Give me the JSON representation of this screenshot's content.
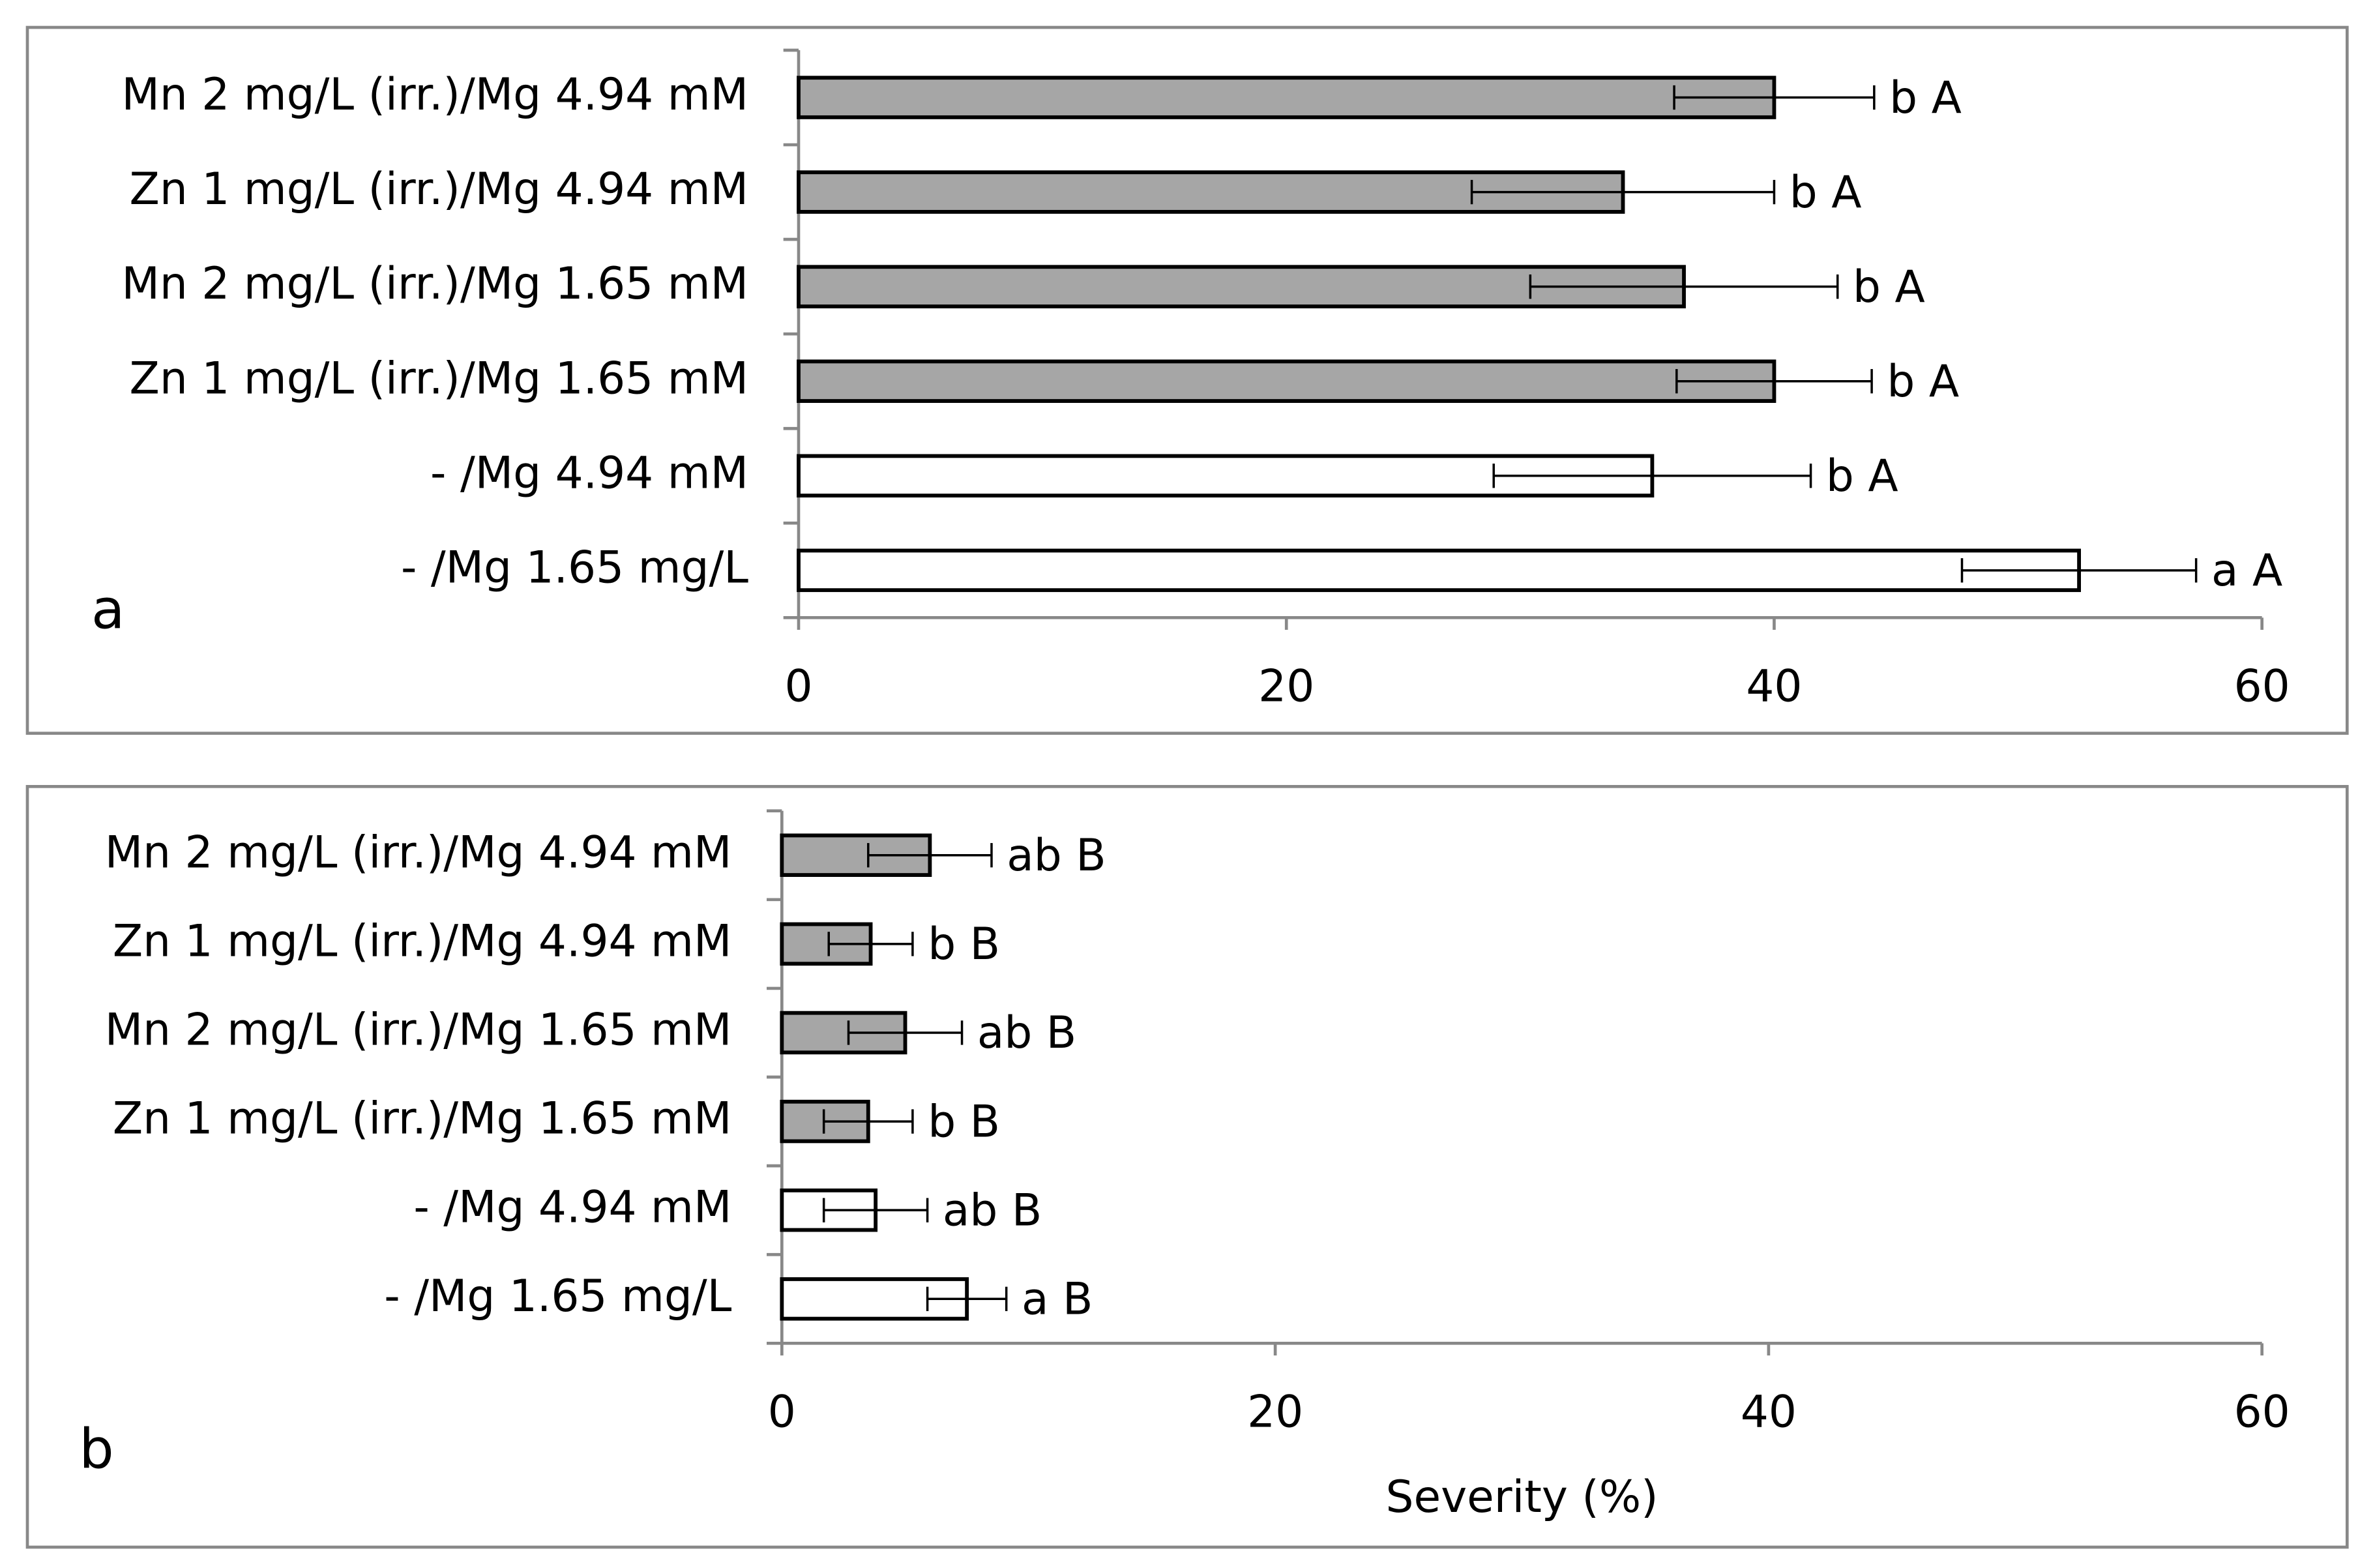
{
  "chart_data": [
    {
      "type": "bar",
      "orientation": "horizontal",
      "panel_label": "a",
      "categories": [
        "Mn 2 mg/L (irr.)/Mg 4.94 mM",
        "Zn 1 mg/L (irr.)/Mg 4.94 mM",
        "Mn 2 mg/L (irr.)/Mg 1.65 mM",
        "Zn 1 mg/L (irr.)/Mg 1.65 mM",
        "-  /Mg 4.94 mM",
        "-  /Mg 1.65 mg/L"
      ],
      "values": [
        40.0,
        33.8,
        36.3,
        40.0,
        35.0,
        52.5
      ],
      "errors": [
        4.1,
        6.2,
        6.3,
        4.0,
        6.5,
        4.8
      ],
      "annotations": [
        "b A",
        "b A",
        "b A",
        "b A",
        "b A",
        "a A"
      ],
      "colors": [
        "#a6a6a6",
        "#a6a6a6",
        "#a6a6a6",
        "#a6a6a6",
        "#ffffff",
        "#ffffff"
      ],
      "xlim": [
        0,
        60
      ],
      "xticks": [
        0,
        20,
        40,
        60
      ]
    },
    {
      "type": "bar",
      "orientation": "horizontal",
      "panel_label": "b",
      "x_label": "Severity (%)",
      "categories": [
        "Mn 2 mg/L (irr.)/Mg 4.94 mM",
        "Zn 1 mg/L (irr.)/Mg 4.94 mM",
        "Mn 2 mg/L (irr.)/Mg 1.65 mM",
        "Zn 1 mg/L (irr.)/Mg 1.65 mM",
        "-  /Mg 4.94 mM",
        "-  /Mg 1.65 mg/L"
      ],
      "values": [
        6.0,
        3.6,
        5.0,
        3.5,
        3.8,
        7.5
      ],
      "errors": [
        2.5,
        1.7,
        2.3,
        1.8,
        2.1,
        1.6
      ],
      "annotations": [
        "ab B",
        "b B",
        "ab B",
        "b B",
        "ab B",
        "a B"
      ],
      "colors": [
        "#a6a6a6",
        "#a6a6a6",
        "#a6a6a6",
        "#a6a6a6",
        "#ffffff",
        "#ffffff"
      ],
      "xlim": [
        0,
        60
      ],
      "xticks": [
        0,
        20,
        40,
        60
      ]
    }
  ]
}
